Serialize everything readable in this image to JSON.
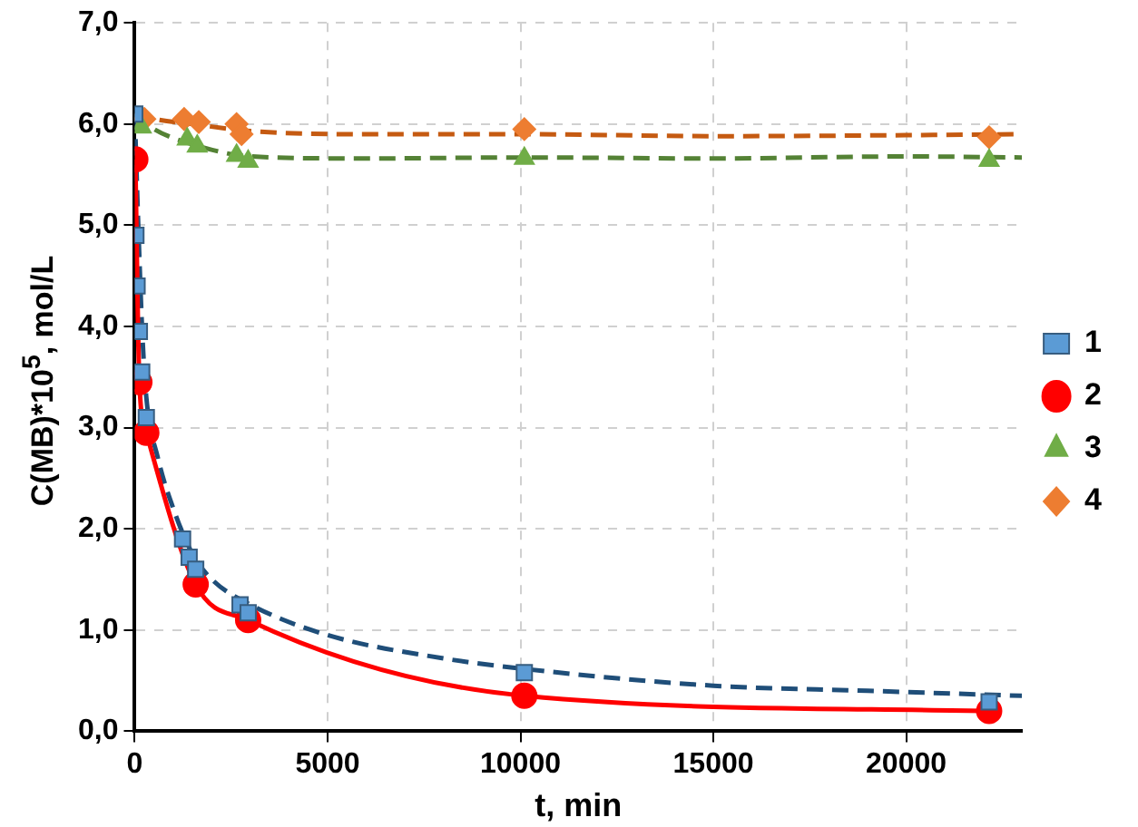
{
  "chart_data": {
    "type": "scatter",
    "xlabel": "t, min",
    "ylabel": "C(MB)*10$^{5}$, mol/L",
    "xlim": [
      0,
      23000
    ],
    "xticks": [
      0,
      5000,
      10000,
      15000,
      20000
    ],
    "ylim": [
      0,
      7
    ],
    "yticks": [
      {
        "value": 0,
        "label": "0,0"
      },
      {
        "value": 1,
        "label": "1,0"
      },
      {
        "value": 2,
        "label": "2,0"
      },
      {
        "value": 3,
        "label": "3,0"
      },
      {
        "value": 4,
        "label": "4,0"
      },
      {
        "value": 5,
        "label": "5,0"
      },
      {
        "value": 6,
        "label": "6,0"
      },
      {
        "value": 7,
        "label": "7,0"
      }
    ],
    "grid": true,
    "legend": "right",
    "series": [
      {
        "type": "line",
        "color": "#1f4e79",
        "line_style": "dashed",
        "marker": "none",
        "x": [
          0,
          100,
          200,
          300,
          600,
          1000,
          1500,
          2000,
          3000,
          5000,
          8000,
          10000,
          15000,
          19000,
          23000
        ],
        "values": [
          6.1,
          4.9,
          3.9,
          3.3,
          2.7,
          2.2,
          1.75,
          1.5,
          1.25,
          0.95,
          0.72,
          0.62,
          0.45,
          0.4,
          0.35
        ]
      },
      {
        "type": "line",
        "color": "#c55a11",
        "line_style": "dashed",
        "marker": "none",
        "x": [
          0,
          500,
          1500,
          3000,
          6000,
          10000,
          15000,
          20000,
          23000
        ],
        "values": [
          6.1,
          6.05,
          6.0,
          5.93,
          5.9,
          5.9,
          5.88,
          5.89,
          5.9
        ]
      },
      {
        "type": "line",
        "color": "#548235",
        "line_style": "dashed",
        "marker": "none",
        "x": [
          0,
          500,
          1500,
          3000,
          6000,
          10000,
          15000,
          20000,
          23000
        ],
        "values": [
          6.1,
          5.95,
          5.8,
          5.68,
          5.66,
          5.67,
          5.66,
          5.68,
          5.67
        ]
      },
      {
        "name": "1",
        "type": "scatter",
        "color": "#5b9bd5",
        "marker": "square",
        "x": [
          0,
          30,
          60,
          120,
          180,
          300,
          1240,
          1410,
          1580,
          2730,
          2940,
          10100,
          22150
        ],
        "values": [
          6.1,
          4.9,
          4.4,
          3.95,
          3.55,
          3.1,
          1.9,
          1.72,
          1.6,
          1.25,
          1.17,
          0.58,
          0.29
        ]
      },
      {
        "name": "2",
        "type": "line",
        "color": "#ff0000",
        "marker": "circle",
        "line_style": "solid",
        "x": [
          15,
          120,
          300,
          1580,
          2940,
          10100,
          22150
        ],
        "values": [
          5.65,
          3.45,
          2.95,
          1.45,
          1.1,
          0.35,
          0.2
        ]
      },
      {
        "name": "3",
        "type": "scatter",
        "color": "#70ad47",
        "marker": "triangle",
        "x": [
          170,
          1360,
          1620,
          2640,
          2940,
          10100,
          22150
        ],
        "values": [
          5.97,
          5.85,
          5.78,
          5.69,
          5.63,
          5.66,
          5.64
        ]
      },
      {
        "name": "4",
        "type": "scatter",
        "color": "#ed7d31",
        "marker": "diamond",
        "x": [
          250,
          1280,
          1660,
          2640,
          2770,
          10100,
          22150
        ],
        "values": [
          6.05,
          6.05,
          6.02,
          6.0,
          5.9,
          5.95,
          5.87
        ]
      }
    ]
  }
}
